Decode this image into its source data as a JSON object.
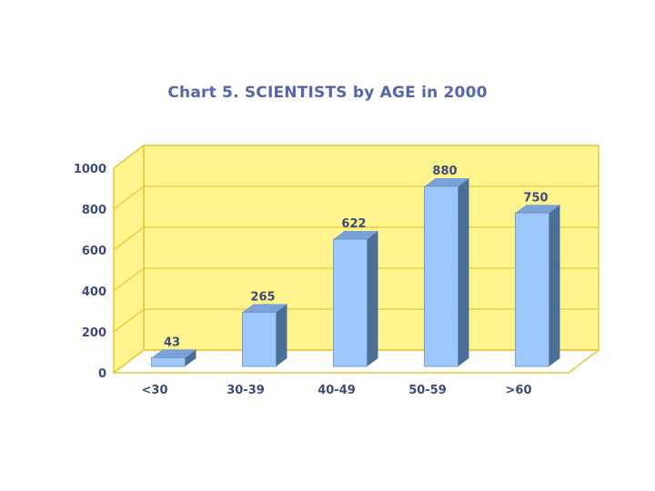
{
  "chart_data": {
    "type": "bar",
    "title": "Chart 5. SCIENTISTS by AGE in 2000",
    "categories": [
      "<30",
      "30-39",
      "40-49",
      "50-59",
      ">60"
    ],
    "values": [
      43,
      265,
      622,
      880,
      750
    ],
    "data_labels": [
      "43",
      "265",
      "622",
      "880",
      "750"
    ],
    "yticks": [
      0,
      200,
      400,
      600,
      800,
      1000
    ],
    "ylim": [
      0,
      1000
    ],
    "xlabel": "",
    "ylabel": "",
    "grid": true,
    "style": "3d"
  },
  "colors": {
    "wall": "#fff48e",
    "grid": "#e8c63a",
    "bar_front": "#9cc8ff",
    "bar_side": "#4c6f95",
    "bar_top": "#7aa2d8",
    "text": "#3d4a7a"
  }
}
